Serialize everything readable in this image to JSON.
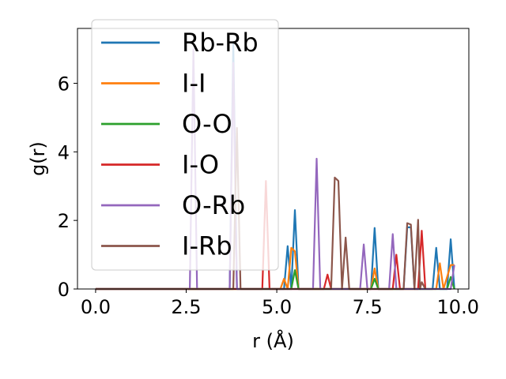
{
  "chart_data": {
    "type": "line",
    "xlabel": "r (Å)",
    "ylabel": "g(r)",
    "xlim": [
      -0.5,
      10.3
    ],
    "ylim": [
      0,
      7.6
    ],
    "xticks": [
      0.0,
      2.5,
      5.0,
      7.5,
      10.0
    ],
    "xtick_labels": [
      "0.0",
      "2.5",
      "5.0",
      "7.5",
      "10.0"
    ],
    "yticks": [
      0,
      2,
      4,
      6
    ],
    "ytick_labels": [
      "0",
      "2",
      "4",
      "6"
    ],
    "grid": false,
    "legend_position": "upper-left",
    "series": [
      {
        "name": "Rb-Rb",
        "color": "#1f77b4",
        "x": [
          0,
          3.7,
          3.8,
          3.9,
          4.0,
          5.2,
          5.3,
          5.4,
          5.5,
          5.6,
          7.6,
          7.7,
          7.8,
          8.5,
          8.6,
          8.7,
          8.8,
          8.9,
          9.3,
          9.4,
          9.5,
          9.7,
          9.8,
          9.9
        ],
        "y": [
          0,
          0,
          7.2,
          0,
          0,
          0,
          1.25,
          0,
          2.3,
          0,
          0,
          1.78,
          0,
          0,
          1.8,
          1.8,
          0,
          0,
          0,
          1.2,
          0,
          0,
          1.45,
          0
        ]
      },
      {
        "name": "I-I",
        "color": "#ff7f0e",
        "x": [
          0,
          5.1,
          5.2,
          5.3,
          5.4,
          5.5,
          5.6,
          7.6,
          7.7,
          7.8,
          9.4,
          9.5,
          9.6,
          9.8,
          9.9
        ],
        "y": [
          0,
          0,
          0.3,
          0,
          1.2,
          1.1,
          0,
          0,
          0.6,
          0,
          0,
          0.75,
          0,
          0.7,
          0.7
        ]
      },
      {
        "name": "O-O",
        "color": "#2ca02c",
        "x": [
          0,
          5.4,
          5.5,
          5.6,
          7.6,
          7.7,
          7.8,
          9.7,
          9.8,
          9.9
        ],
        "y": [
          0,
          0,
          0.55,
          0,
          0,
          0.3,
          0,
          0,
          0.35,
          0
        ]
      },
      {
        "name": "I-O",
        "color": "#d62728",
        "x": [
          0,
          4.6,
          4.7,
          4.8,
          6.3,
          6.4,
          6.5,
          8.2,
          8.3,
          8.4,
          8.9,
          9.0,
          9.1
        ],
        "y": [
          0,
          0,
          3.15,
          0,
          0,
          0.42,
          0,
          0,
          1.0,
          0,
          0,
          1.7,
          0
        ]
      },
      {
        "name": "O-Rb",
        "color": "#9467bd",
        "x": [
          0,
          2.6,
          2.7,
          2.8,
          3.7,
          3.8,
          3.9,
          6.0,
          6.1,
          6.2,
          7.3,
          7.4,
          7.5,
          8.1,
          8.2,
          8.3,
          9.8,
          9.9
        ],
        "y": [
          0,
          0,
          7.0,
          0,
          0,
          6.6,
          0,
          0,
          3.8,
          0,
          0,
          1.3,
          0,
          0,
          1.6,
          0,
          0,
          0.7
        ]
      },
      {
        "name": "I-Rb",
        "color": "#8c564b",
        "x": [
          0,
          3.8,
          3.9,
          4.0,
          6.5,
          6.6,
          6.7,
          6.8,
          6.9,
          7.0,
          8.5,
          8.6,
          8.7,
          8.8,
          8.9,
          8.95,
          9.0,
          9.1
        ],
        "y": [
          0,
          0,
          4.7,
          0,
          0,
          3.25,
          3.15,
          0,
          1.5,
          0,
          0,
          1.92,
          1.88,
          0,
          2.02,
          0,
          0.2,
          0
        ]
      }
    ]
  }
}
